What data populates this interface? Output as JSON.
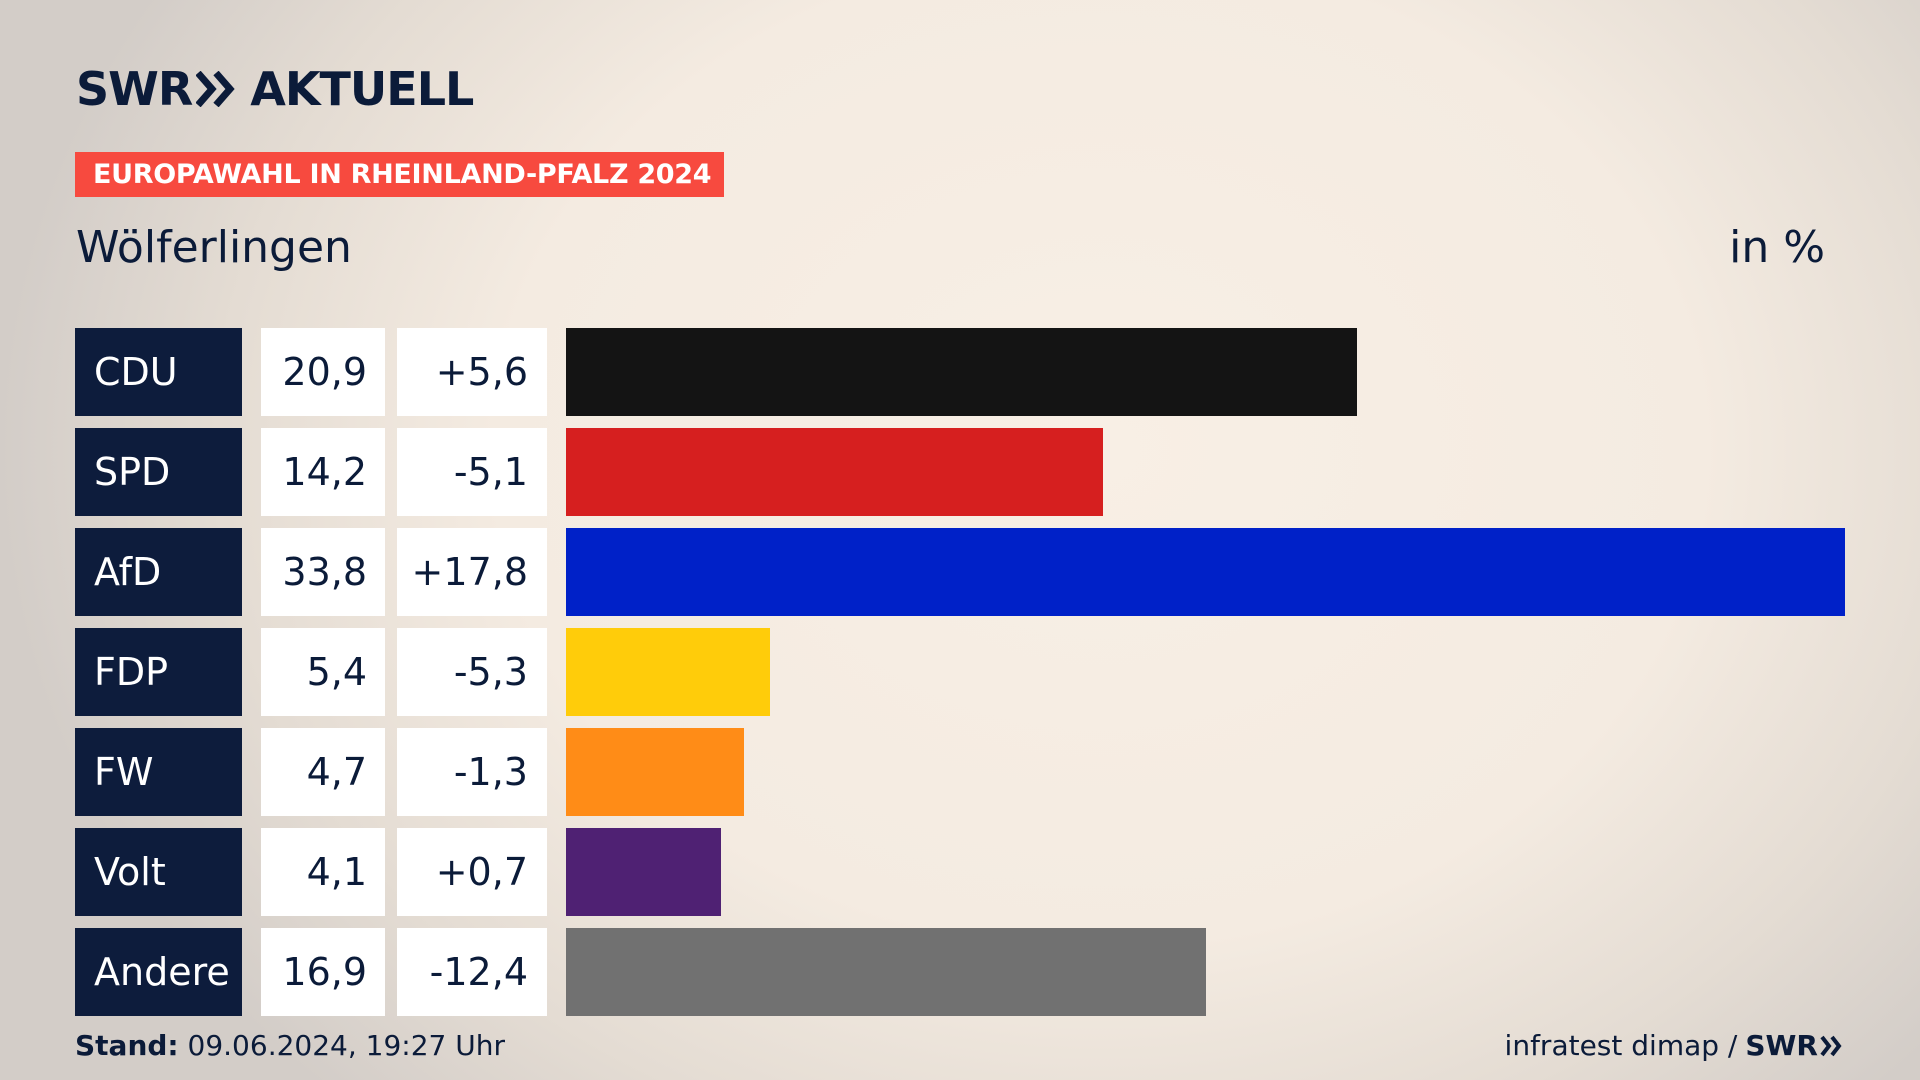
{
  "header": {
    "brand_left": "SWR",
    "brand_right": "AKTUELL",
    "banner": "EUROPAWAHL IN RHEINLAND-PFALZ 2024",
    "subtitle": "Wölferlingen",
    "unit": "in %"
  },
  "chart_data": {
    "type": "bar",
    "orientation": "horizontal",
    "title": "Wölferlingen",
    "unit": "in %",
    "xlim": [
      0,
      33.8
    ],
    "categories": [
      "CDU",
      "SPD",
      "AfD",
      "FDP",
      "FW",
      "Volt",
      "Andere"
    ],
    "values": [
      20.9,
      14.2,
      33.8,
      5.4,
      4.7,
      4.1,
      16.9
    ],
    "labels": [
      "20,9",
      "14,2",
      "33,8",
      "5,4",
      "4,7",
      "4,1",
      "16,9"
    ],
    "diffs": [
      "+5,6",
      "-5,1",
      "+17,8",
      "-5,3",
      "-1,3",
      "+0,7",
      "-12,4"
    ],
    "colors": [
      "#141414",
      "#d61f1f",
      "#0021c8",
      "#ffcc0a",
      "#ff8c17",
      "#4f2173",
      "#717171"
    ]
  },
  "footer": {
    "stand_label": "Stand:",
    "stand_value": "09.06.2024, 19:27 Uhr",
    "source": "infratest dimap /",
    "logo": "SWR"
  }
}
